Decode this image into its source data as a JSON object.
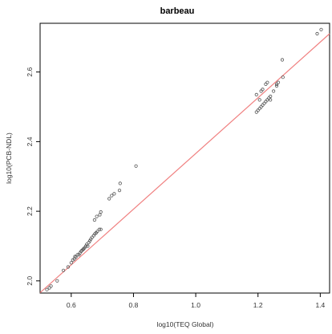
{
  "chart_data": {
    "type": "scatter",
    "title": "barbeau",
    "xlabel": "log10(TEQ Global)",
    "ylabel": "log10(PCB-NDL)",
    "xlim": [
      0.5,
      1.43
    ],
    "ylim": [
      1.965,
      2.74
    ],
    "xticks": [
      "0.6",
      "0.8",
      "1.0",
      "1.2",
      "1.4"
    ],
    "yticks": [
      "2.0",
      "2.2",
      "2.4",
      "2.6"
    ],
    "grid": false,
    "colors": {
      "points": "#555555",
      "fit_line": "#f08080",
      "axes": "#000000"
    },
    "points": [
      [
        0.522,
        1.975
      ],
      [
        0.53,
        1.98
      ],
      [
        0.535,
        1.985
      ],
      [
        0.555,
        2.0
      ],
      [
        0.575,
        2.03
      ],
      [
        0.59,
        2.04
      ],
      [
        0.6,
        2.052
      ],
      [
        0.605,
        2.06
      ],
      [
        0.61,
        2.063
      ],
      [
        0.612,
        2.07
      ],
      [
        0.615,
        2.068
      ],
      [
        0.62,
        2.075
      ],
      [
        0.625,
        2.075
      ],
      [
        0.628,
        2.08
      ],
      [
        0.632,
        2.085
      ],
      [
        0.635,
        2.088
      ],
      [
        0.638,
        2.09
      ],
      [
        0.64,
        2.092
      ],
      [
        0.643,
        2.095
      ],
      [
        0.647,
        2.1
      ],
      [
        0.65,
        2.105
      ],
      [
        0.653,
        2.1
      ],
      [
        0.656,
        2.11
      ],
      [
        0.66,
        2.115
      ],
      [
        0.663,
        2.12
      ],
      [
        0.667,
        2.125
      ],
      [
        0.672,
        2.13
      ],
      [
        0.676,
        2.135
      ],
      [
        0.68,
        2.138
      ],
      [
        0.684,
        2.142
      ],
      [
        0.69,
        2.148
      ],
      [
        0.695,
        2.148
      ],
      [
        0.675,
        2.175
      ],
      [
        0.682,
        2.185
      ],
      [
        0.692,
        2.19
      ],
      [
        0.695,
        2.198
      ],
      [
        0.722,
        2.236
      ],
      [
        0.73,
        2.245
      ],
      [
        0.738,
        2.25
      ],
      [
        0.755,
        2.26
      ],
      [
        0.757,
        2.28
      ],
      [
        0.808,
        2.33
      ],
      [
        1.195,
        2.485
      ],
      [
        1.2,
        2.49
      ],
      [
        1.205,
        2.495
      ],
      [
        1.21,
        2.5
      ],
      [
        1.215,
        2.505
      ],
      [
        1.22,
        2.51
      ],
      [
        1.225,
        2.515
      ],
      [
        1.23,
        2.52
      ],
      [
        1.235,
        2.525
      ],
      [
        1.24,
        2.53
      ],
      [
        1.25,
        2.545
      ],
      [
        1.26,
        2.56
      ],
      [
        1.265,
        2.57
      ],
      [
        1.21,
        2.545
      ],
      [
        1.215,
        2.55
      ],
      [
        1.225,
        2.565
      ],
      [
        1.23,
        2.57
      ],
      [
        1.195,
        2.535
      ],
      [
        1.205,
        2.52
      ],
      [
        1.24,
        2.52
      ],
      [
        1.26,
        2.565
      ],
      [
        1.28,
        2.585
      ],
      [
        1.278,
        2.635
      ],
      [
        1.39,
        2.71
      ],
      [
        1.403,
        2.722
      ]
    ],
    "fit_line": {
      "intercept": 1.566,
      "slope": 0.8
    }
  }
}
